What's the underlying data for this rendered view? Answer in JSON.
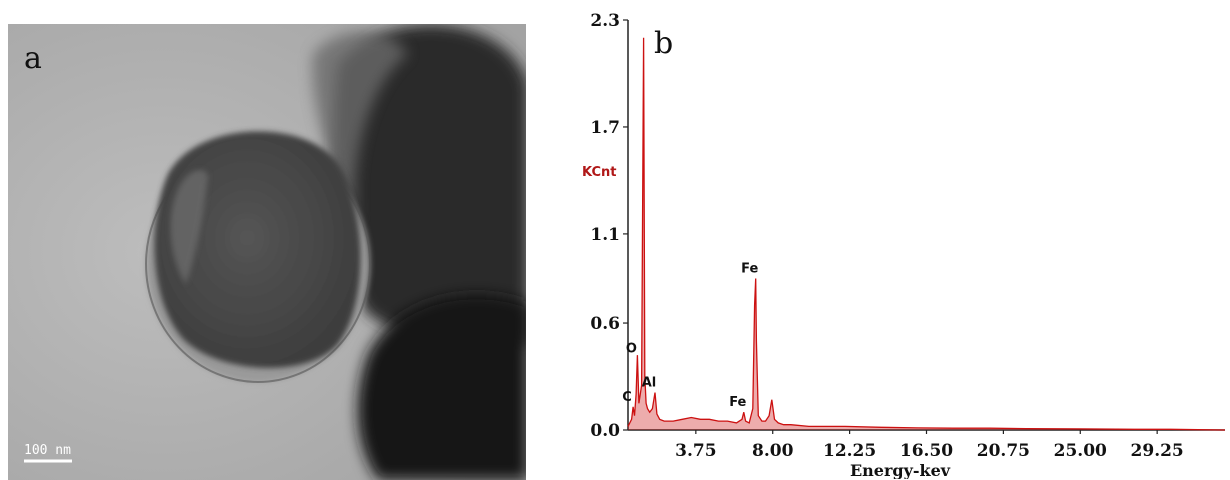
{
  "panels": {
    "a": {
      "label": "a",
      "scale_bar": "100 nm"
    },
    "b": {
      "label": "b"
    }
  },
  "colors": {
    "spectrum": "#cc1111",
    "kcnt_label": "#b01818",
    "axis": "#222222"
  },
  "chart_data": {
    "type": "line",
    "title": "",
    "xlabel": "Energy-kev",
    "ylabel": "KCnt",
    "ylim": [
      0.0,
      2.3
    ],
    "xlim": [
      0.0,
      33.0
    ],
    "y_ticks": [
      "0.0",
      "0.6",
      "1.1",
      "1.7",
      "2.3"
    ],
    "y_tick_values": [
      0.0,
      0.6,
      1.1,
      1.7,
      2.3
    ],
    "x_ticks": [
      "3.75",
      "8.00",
      "12.25",
      "16.50",
      "20.75",
      "25.00",
      "29.25"
    ],
    "x_tick_values": [
      3.75,
      8.0,
      12.25,
      16.5,
      20.75,
      25.0,
      29.25
    ],
    "peak_labels": [
      {
        "text": "C",
        "x": 0.28,
        "y": 0.13
      },
      {
        "text": "O",
        "x": 0.52,
        "y": 0.4
      },
      {
        "text": "Al",
        "x": 1.49,
        "y": 0.21
      },
      {
        "text": "Fe",
        "x": 6.4,
        "y": 0.1
      },
      {
        "text": "Fe",
        "x": 7.06,
        "y": 0.85
      }
    ],
    "series": [
      {
        "x": [
          0.0,
          0.2,
          0.28,
          0.36,
          0.45,
          0.52,
          0.6,
          0.75,
          0.86,
          0.93,
          1.0,
          1.08,
          1.2,
          1.35,
          1.49,
          1.6,
          1.75,
          2.0,
          2.5,
          3.0,
          3.5,
          4.0,
          4.5,
          5.0,
          5.5,
          6.0,
          6.3,
          6.4,
          6.5,
          6.7,
          6.9,
          7.0,
          7.06,
          7.1,
          7.2,
          7.4,
          7.6,
          7.8,
          7.95,
          8.1,
          8.3,
          8.6,
          9.0,
          10.0,
          11.0,
          12.0,
          14.0,
          16.0,
          18.0,
          20.0,
          22.0,
          25.0,
          28.0,
          30.0,
          33.0
        ],
        "y": [
          0.02,
          0.06,
          0.13,
          0.08,
          0.2,
          0.42,
          0.15,
          0.25,
          2.2,
          0.3,
          0.15,
          0.12,
          0.1,
          0.12,
          0.21,
          0.09,
          0.06,
          0.05,
          0.05,
          0.06,
          0.07,
          0.06,
          0.06,
          0.05,
          0.05,
          0.04,
          0.06,
          0.1,
          0.05,
          0.04,
          0.12,
          0.7,
          0.85,
          0.5,
          0.08,
          0.05,
          0.05,
          0.08,
          0.17,
          0.06,
          0.04,
          0.03,
          0.03,
          0.02,
          0.02,
          0.02,
          0.015,
          0.012,
          0.01,
          0.01,
          0.008,
          0.006,
          0.004,
          0.004,
          0.0
        ]
      }
    ]
  }
}
